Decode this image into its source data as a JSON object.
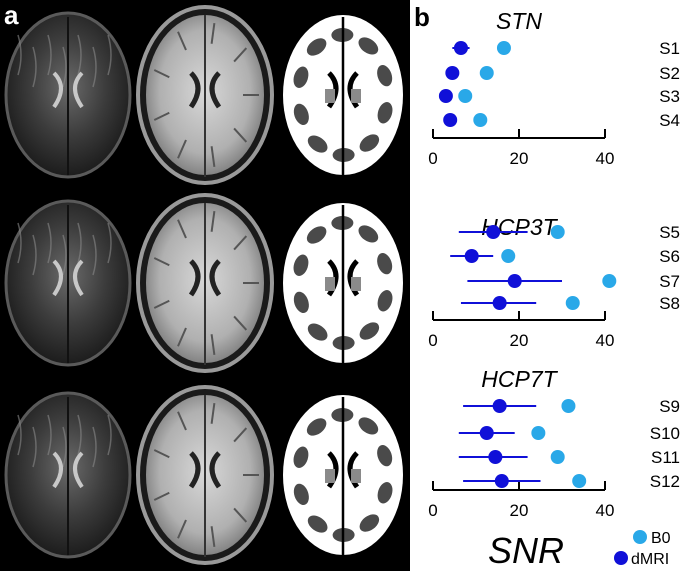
{
  "figure": {
    "panel_a_label": "a",
    "panel_b_label": "b",
    "colors": {
      "b0": "#29a8e8",
      "dmri": "#1010d8",
      "background_a": "#000000"
    },
    "brain_rows": [
      {
        "row": "STN",
        "images": [
          "dMRI-axial-slice",
          "T1-axial-slice",
          "tissue-mask"
        ]
      },
      {
        "row": "HCP3T",
        "images": [
          "dMRI-axial-slice",
          "T1-axial-slice",
          "tissue-mask"
        ]
      },
      {
        "row": "HCP7T",
        "images": [
          "dMRI-axial-slice",
          "T1-axial-slice",
          "tissue-mask"
        ]
      }
    ]
  },
  "chart_data": [
    {
      "type": "scatter",
      "title": "STN",
      "xlim": [
        0,
        40
      ],
      "xticks": [
        "0",
        "20",
        "40"
      ],
      "subjects": [
        "S1",
        "S2",
        "S3",
        "S4"
      ],
      "series": [
        {
          "name": "B0",
          "values": [
            16.5,
            12.5,
            7.5,
            11
          ]
        },
        {
          "name": "dMRI",
          "values": [
            6.5,
            4.5,
            3,
            4
          ],
          "err_low": [
            4.5,
            3.5,
            3,
            4
          ],
          "err_high": [
            8.5,
            5.5,
            3,
            4
          ]
        }
      ]
    },
    {
      "type": "scatter",
      "title": "HCP3T",
      "xlim": [
        0,
        40
      ],
      "xticks": [
        "0",
        "20",
        "40"
      ],
      "subjects": [
        "S5",
        "S6",
        "S7",
        "S8"
      ],
      "series": [
        {
          "name": "B0",
          "values": [
            29,
            17.5,
            41,
            32.5
          ]
        },
        {
          "name": "dMRI",
          "values": [
            14,
            9,
            19,
            15.5
          ],
          "err_low": [
            6,
            4,
            8,
            6.5
          ],
          "err_high": [
            22,
            14,
            30,
            24
          ]
        }
      ]
    },
    {
      "type": "scatter",
      "title": "HCP7T",
      "xlim": [
        0,
        40
      ],
      "xticks": [
        "0",
        "20",
        "40"
      ],
      "subjects": [
        "S9",
        "S10",
        "S11",
        "S12"
      ],
      "series": [
        {
          "name": "B0",
          "values": [
            31.5,
            24.5,
            29,
            34
          ]
        },
        {
          "name": "dMRI",
          "values": [
            15.5,
            12.5,
            14.5,
            16
          ],
          "err_low": [
            7,
            6,
            6,
            7
          ],
          "err_high": [
            24,
            19,
            22,
            25
          ]
        }
      ]
    }
  ],
  "shared_xlabel": "SNR",
  "legend": [
    {
      "name": "B0"
    },
    {
      "name": "dMRI"
    }
  ]
}
